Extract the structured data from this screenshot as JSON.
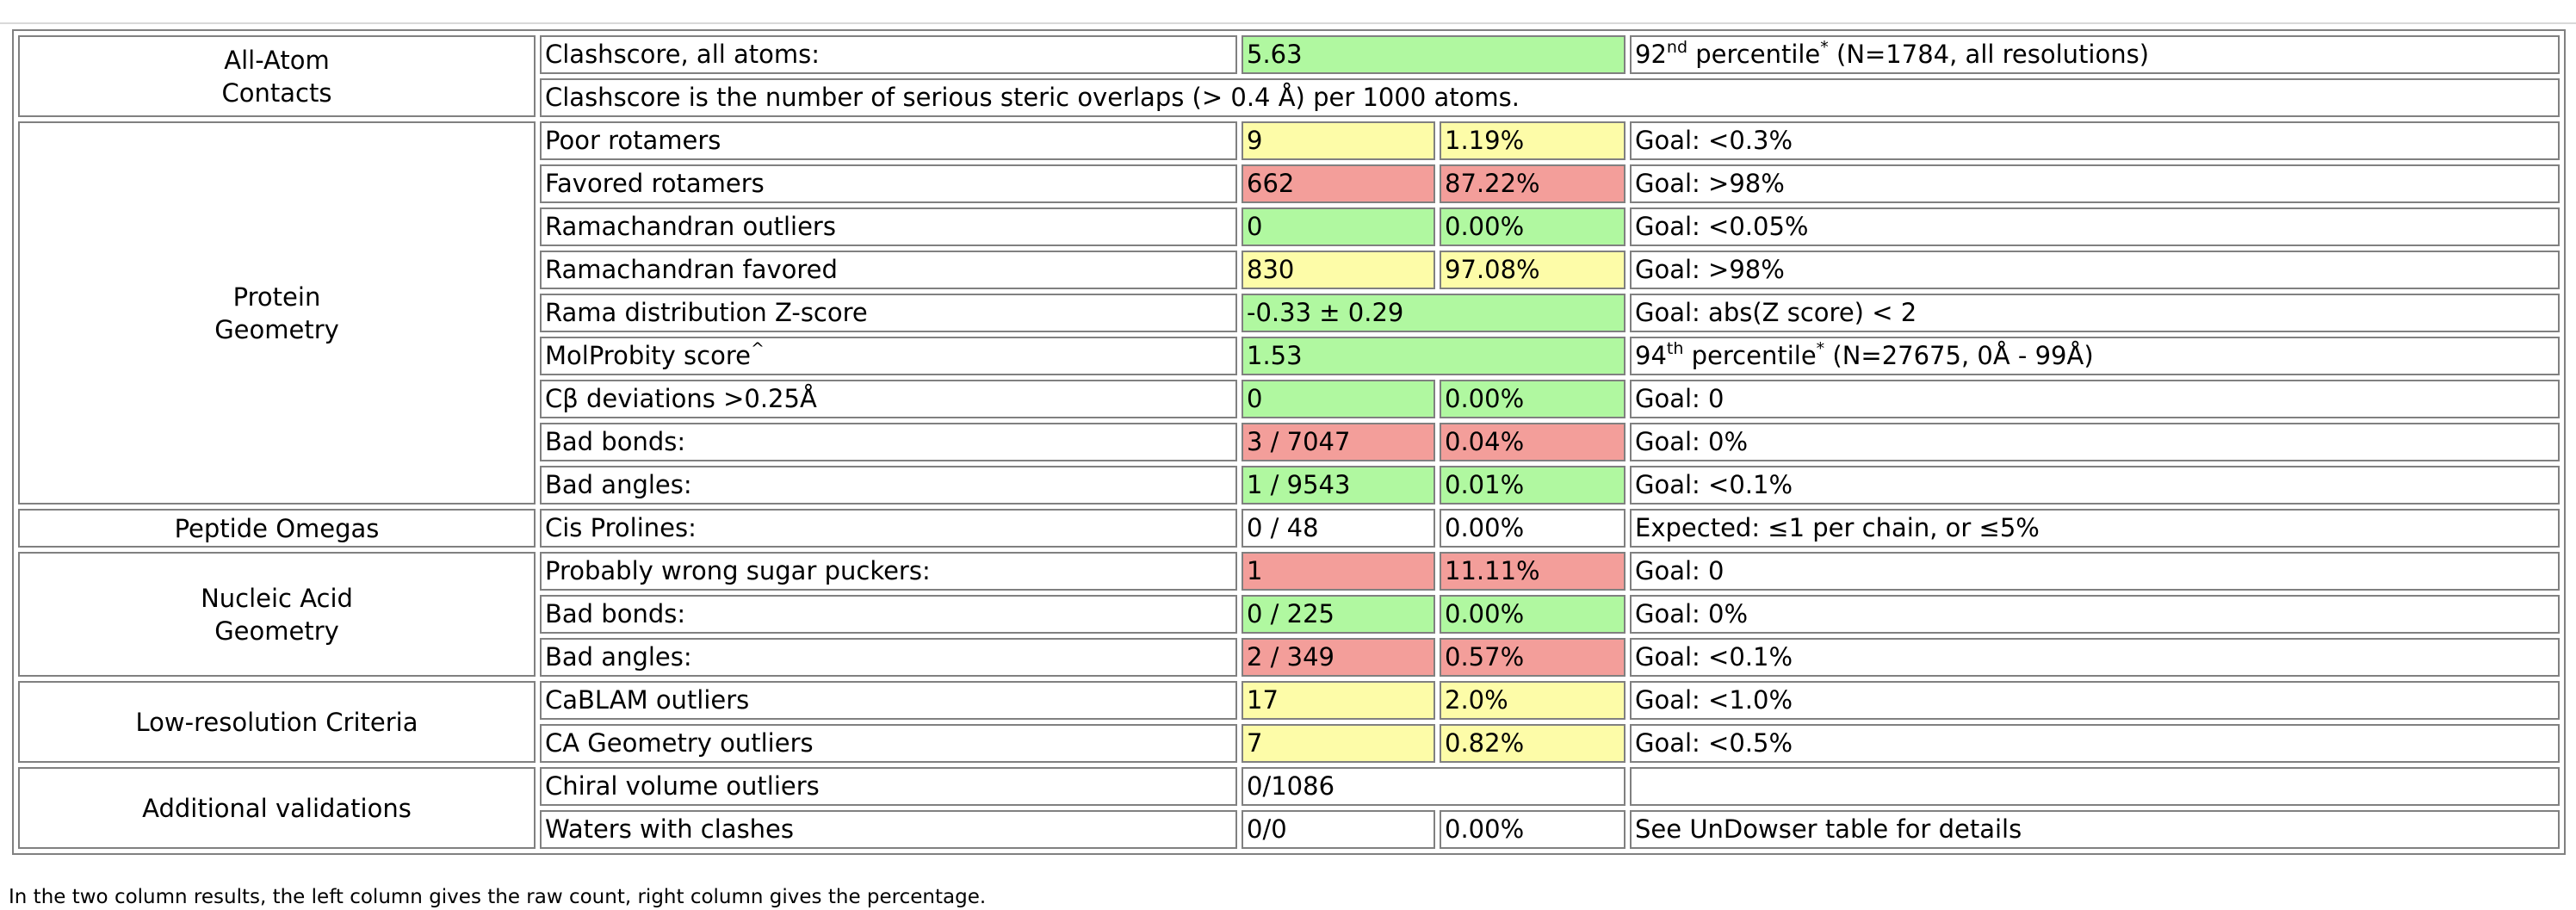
{
  "colors": {
    "green": "#b0f8a0",
    "yellow": "#fdfca8",
    "red": "#f39e9a",
    "border": "#808080"
  },
  "sections": {
    "all_atom": {
      "line1": "All-Atom",
      "line2": "Contacts"
    },
    "protein": {
      "line1": "Protein",
      "line2": "Geometry"
    },
    "peptide": {
      "line1": "Peptide Omegas"
    },
    "nucleic": {
      "line1": "Nucleic Acid",
      "line2": "Geometry"
    },
    "lowres": {
      "line1": "Low-resolution Criteria"
    },
    "additional": {
      "line1": "Additional validations"
    }
  },
  "rows": {
    "clashscore": {
      "label": "Clashscore, all atoms:",
      "value": "5.63",
      "note_pre": "92",
      "note_sup": "nd",
      "note_mid": " percentile",
      "note_star": "*",
      "note_post": " (N=1784, all resolutions)"
    },
    "clash_desc": {
      "text": "Clashscore is the number of serious steric overlaps (> 0.4 Å) per 1000 atoms."
    },
    "poor_rot": {
      "label": "Poor rotamers",
      "count": "9",
      "pct": "1.19%",
      "goal": "Goal: <0.3%"
    },
    "fav_rot": {
      "label": "Favored rotamers",
      "count": "662",
      "pct": "87.22%",
      "goal": "Goal: >98%"
    },
    "rama_out": {
      "label": "Ramachandran outliers",
      "count": "0",
      "pct": "0.00%",
      "goal": "Goal: <0.05%"
    },
    "rama_fav": {
      "label": "Ramachandran favored",
      "count": "830",
      "pct": "97.08%",
      "goal": "Goal: >98%"
    },
    "rama_z": {
      "label": "Rama distribution Z-score",
      "value": "-0.33 ± 0.29",
      "goal": "Goal: abs(Z score) < 2"
    },
    "molprobity": {
      "label": "MolProbity score",
      "label_sup": "^",
      "value": "1.53",
      "note_pre": "94",
      "note_sup": "th",
      "note_mid": " percentile",
      "note_star": "*",
      "note_post": " (N=27675, 0Å - 99Å)"
    },
    "cb_dev": {
      "label": "Cβ deviations >0.25Å",
      "count": "0",
      "pct": "0.00%",
      "goal": "Goal: 0"
    },
    "bad_bonds": {
      "label": "Bad bonds:",
      "count": "3 / 7047",
      "pct": "0.04%",
      "goal": "Goal: 0%"
    },
    "bad_angles": {
      "label": "Bad angles:",
      "count": "1 / 9543",
      "pct": "0.01%",
      "goal": "Goal: <0.1%"
    },
    "cis_pro": {
      "label": "Cis Prolines:",
      "count": "0 / 48",
      "pct": "0.00%",
      "goal": "Expected: ≤1 per chain, or ≤5%"
    },
    "sugar": {
      "label": "Probably wrong sugar puckers:",
      "count": "1",
      "pct": "11.11%",
      "goal": "Goal: 0"
    },
    "na_bonds": {
      "label": "Bad bonds:",
      "count": "0 / 225",
      "pct": "0.00%",
      "goal": "Goal: 0%"
    },
    "na_angles": {
      "label": "Bad angles:",
      "count": "2 / 349",
      "pct": "0.57%",
      "goal": "Goal: <0.1%"
    },
    "cablam": {
      "label": "CaBLAM outliers",
      "count": "17",
      "pct": "2.0%",
      "goal": "Goal: <1.0%"
    },
    "ca_geom": {
      "label": "CA Geometry outliers",
      "count": "7",
      "pct": "0.82%",
      "goal": "Goal: <0.5%"
    },
    "chiral": {
      "label": "Chiral volume outliers",
      "value": "0/1086",
      "goal": ""
    },
    "waters": {
      "label": "Waters with clashes",
      "count": "0/0",
      "pct": "0.00%",
      "goal": "See UnDowser table for details"
    }
  },
  "footnote": "In the two column results, the left column gives the raw count, right column gives the percentage."
}
